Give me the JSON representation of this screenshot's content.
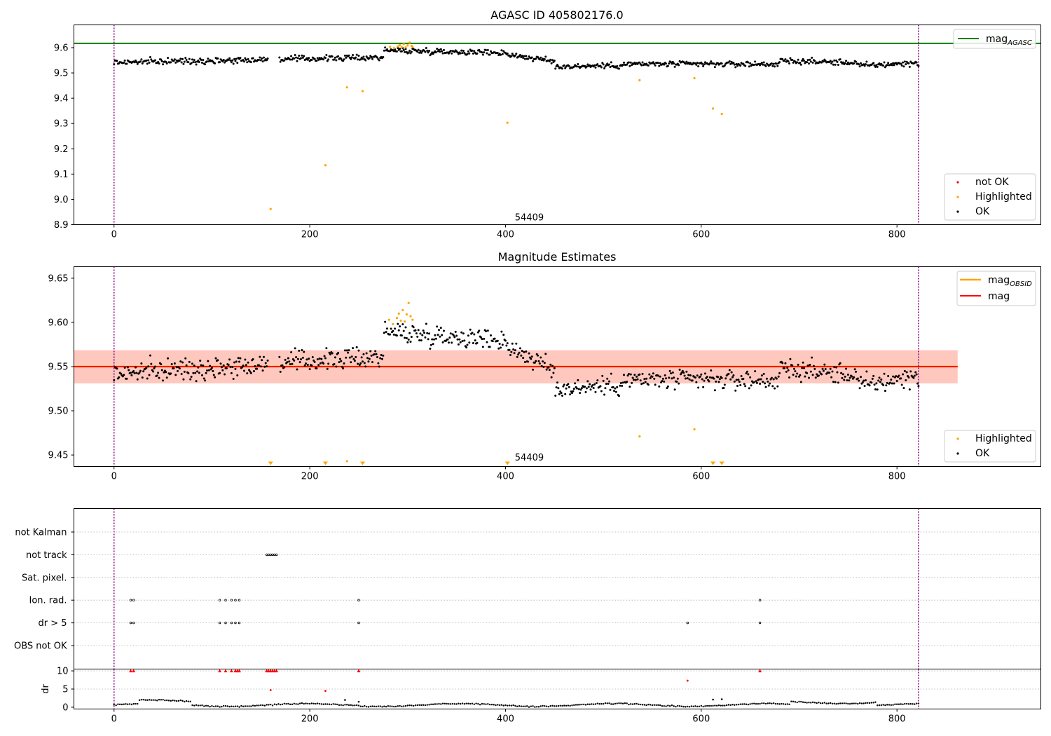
{
  "chart_data": [
    {
      "type": "scatter",
      "title": "AGASC ID 405802176.0",
      "xlim": [
        -41,
        947
      ],
      "ylim": [
        8.9,
        9.69
      ],
      "xticks": [
        0,
        200,
        400,
        600,
        800
      ],
      "yticks": [
        8.9,
        9.0,
        9.1,
        9.2,
        9.3,
        9.4,
        9.5,
        9.6
      ],
      "ytick_labels": [
        "8.9",
        "9.0",
        "9.1",
        "9.2",
        "9.3",
        "9.4",
        "9.5",
        "9.6"
      ],
      "vlines": [
        0,
        822
      ],
      "hline": {
        "name": "mag_AGASC",
        "label_main": "mag",
        "label_sub": "AGASC",
        "y": 9.617,
        "x_end": 947,
        "color": "#008000"
      },
      "annotation": {
        "text": "54409",
        "x": 410,
        "y": 8.92
      },
      "ok_bands": [
        {
          "x0": 0,
          "x1": 140,
          "y0": 9.542,
          "y1": 9.552
        },
        {
          "x0": 140,
          "x1": 275,
          "y0": 9.552,
          "y1": 9.562
        },
        {
          "x0": 275,
          "x1": 400,
          "y0": 9.59,
          "y1": 9.58
        },
        {
          "x0": 400,
          "x1": 450,
          "y0": 9.575,
          "y1": 9.545
        },
        {
          "x0": 450,
          "x1": 520,
          "y0": 9.525,
          "y1": 9.53
        },
        {
          "x0": 520,
          "x1": 680,
          "y0": 9.535,
          "y1": 9.535
        },
        {
          "x0": 680,
          "x1": 760,
          "y0": 9.548,
          "y1": 9.54
        },
        {
          "x0": 760,
          "x1": 822,
          "y0": 9.528,
          "y1": 9.54
        }
      ],
      "ok_noise": 0.011,
      "highlighted": {
        "x": [
          160,
          216,
          238,
          254,
          402,
          537,
          593,
          612,
          621,
          282,
          286,
          290,
          292,
          294,
          296,
          298,
          300,
          302,
          304,
          305
        ],
        "y": [
          8.962,
          9.135,
          9.443,
          9.428,
          9.303,
          9.471,
          9.479,
          9.359,
          9.338,
          9.603,
          9.598,
          9.605,
          9.61,
          9.602,
          9.614,
          9.601,
          9.609,
          9.62,
          9.607,
          9.603
        ]
      },
      "legend_top": [
        {
          "label_main": "mag",
          "label_sub": "AGASC",
          "color": "#008000"
        }
      ],
      "legend_bottom": [
        {
          "label": "not OK",
          "color": "#ff0000"
        },
        {
          "label": "Highlighted",
          "color": "#ffa500"
        },
        {
          "label": "OK",
          "color": "#000000"
        }
      ]
    },
    {
      "type": "scatter",
      "title": "Magnitude Estimates",
      "xlim": [
        -41,
        947
      ],
      "ylim": [
        9.437,
        9.663
      ],
      "xticks": [
        0,
        200,
        400,
        600,
        800
      ],
      "yticks": [
        9.45,
        9.5,
        9.55,
        9.6,
        9.65
      ],
      "ytick_labels": [
        "9.45",
        "9.50",
        "9.55",
        "9.60",
        "9.65"
      ],
      "vlines": [
        0,
        822
      ],
      "band_red": {
        "x0": -41,
        "x1": 862,
        "y0": 9.531,
        "y1": 9.569
      },
      "band_orange": {
        "x0": -41,
        "x1": 862,
        "y0": 9.531,
        "y1": 9.568
      },
      "mag_line": {
        "name": "mag",
        "y": 9.55,
        "x0": -41,
        "x1": 862,
        "color": "#ff0000"
      },
      "mag_obsid_line": {
        "name": "mag_OBSID",
        "label_main": "mag",
        "label_sub": "OBSID",
        "y": 9.55,
        "x0": -41,
        "x1": 862,
        "color": "#ffa500"
      },
      "annotation": {
        "text": "54409",
        "x": 410,
        "y": 9.443
      },
      "ok_noise": 0.011,
      "highlighted": {
        "x": [
          238,
          537,
          593,
          281,
          285,
          289,
          291,
          293,
          295,
          297,
          299,
          301,
          303,
          305
        ],
        "y": [
          9.443,
          9.471,
          9.479,
          9.603,
          9.598,
          9.605,
          9.61,
          9.602,
          9.614,
          9.601,
          9.609,
          9.622,
          9.607,
          9.603
        ]
      },
      "offscale_low_x": [
        160,
        216,
        254,
        402,
        612,
        621
      ],
      "legend_top": [
        {
          "label_main": "mag",
          "label_sub": "OBSID",
          "color": "#ffa500"
        },
        {
          "label_main": "mag",
          "label_sub": "",
          "color": "#ff0000"
        }
      ],
      "legend_bottom": [
        {
          "label": "Highlighted",
          "color": "#ffa500"
        },
        {
          "label": "OK",
          "color": "#000000"
        }
      ]
    },
    {
      "type": "scatter",
      "title": "",
      "xlim": [
        -41,
        947
      ],
      "vlines": [
        0,
        822
      ],
      "flag_categories": [
        "not Kalman",
        "not track",
        "Sat. pixel.",
        "Ion. rad.",
        "dr > 5",
        "OBS not OK"
      ],
      "flags": {
        "not track": [
          156,
          158,
          160,
          162,
          164,
          166
        ],
        "Ion. rad.": [
          17,
          20,
          108,
          114,
          120,
          124,
          128,
          250,
          660
        ],
        "dr > 5": [
          17,
          20,
          108,
          114,
          120,
          124,
          128,
          250,
          586,
          660
        ]
      }
    },
    {
      "type": "scatter",
      "title": "",
      "ylabel": "dr",
      "xlim": [
        -41,
        947
      ],
      "ylim": [
        -0.5,
        10.5
      ],
      "xticks": [
        0,
        200,
        400,
        600,
        800
      ],
      "yticks": [
        0,
        5,
        10
      ],
      "ytick_labels": [
        "0",
        "5",
        "10"
      ],
      "vlines": [
        0,
        822
      ],
      "dr_capped_x": [
        17,
        20,
        108,
        114,
        120,
        124,
        126,
        128,
        156,
        158,
        160,
        162,
        164,
        166,
        250,
        660
      ],
      "dr_red_points": {
        "x": [
          160,
          216,
          586
        ],
        "y": [
          4.7,
          4.5,
          7.3
        ]
      },
      "dr_black_points": {
        "x": [
          236,
          250,
          612,
          621
        ],
        "y": [
          2.0,
          1.5,
          2.1,
          2.2
        ]
      }
    }
  ]
}
